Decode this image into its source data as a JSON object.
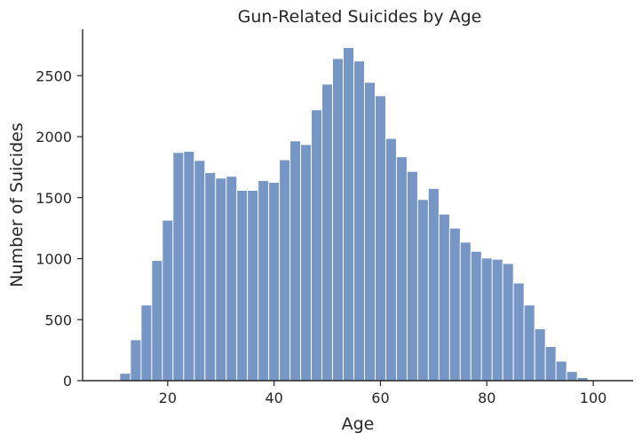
{
  "chart_data": {
    "type": "bar",
    "title": "Gun-Related Suicides by Age",
    "xlabel": "Age",
    "ylabel": "Number of Suicides",
    "bar_color": "#7696c6",
    "grid": false,
    "xlim": [
      4,
      107.5
    ],
    "ylim": [
      0,
      2880
    ],
    "xticks": [
      20,
      40,
      60,
      80,
      100
    ],
    "yticks": [
      0,
      500,
      1000,
      1500,
      2000,
      2500
    ],
    "bin_start": 11,
    "bin_width": 2,
    "values": [
      60,
      335,
      620,
      985,
      1315,
      1870,
      1880,
      1805,
      1705,
      1660,
      1675,
      1560,
      1560,
      1640,
      1625,
      1810,
      1965,
      1935,
      2220,
      2430,
      2640,
      2730,
      2620,
      2445,
      2335,
      1985,
      1835,
      1715,
      1485,
      1575,
      1365,
      1250,
      1135,
      1060,
      1005,
      995,
      960,
      800,
      620,
      425,
      280,
      160,
      75,
      25,
      5
    ]
  }
}
